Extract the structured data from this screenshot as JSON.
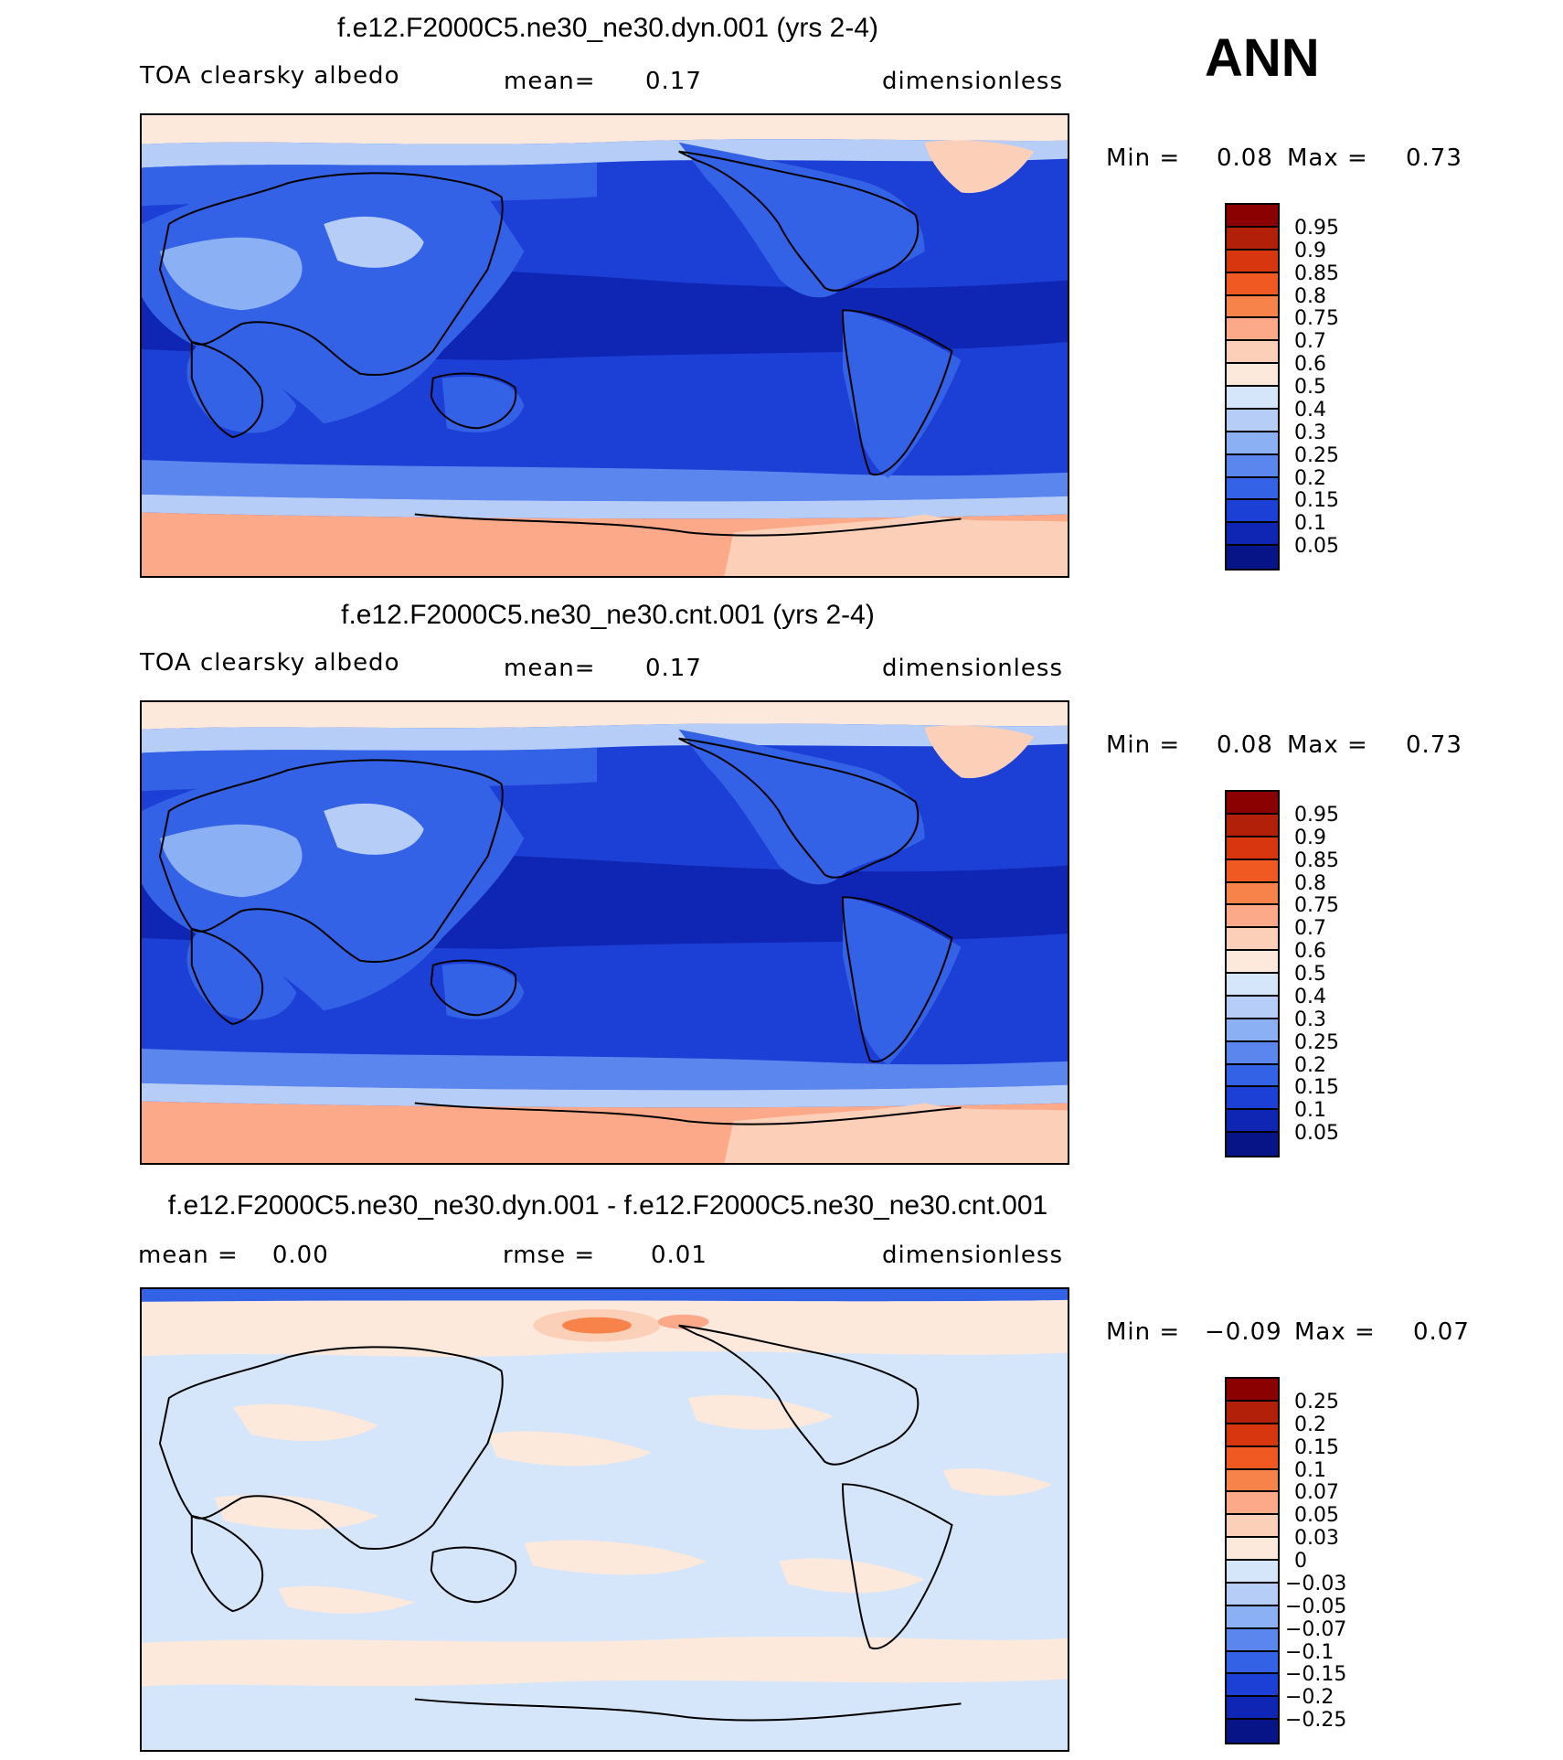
{
  "season": "ANN",
  "panels": [
    {
      "title": "f.e12.F2000C5.ne30_ne30.dyn.001 (yrs 2-4)",
      "subtitle_left": "TOA clearsky albedo",
      "stat_label": "mean=",
      "stat_value": "0.17",
      "stat2_label": "",
      "stat2_value": "",
      "units": "dimensionless",
      "min_label": "Min =",
      "min_value": "0.08",
      "max_label": "Max =",
      "max_value": "0.73",
      "colorbar_labels": [
        "0.95",
        "0.9",
        "0.85",
        "0.8",
        "0.75",
        "0.7",
        "0.6",
        "0.5",
        "0.4",
        "0.3",
        "0.25",
        "0.2",
        "0.15",
        "0.1",
        "0.05"
      ],
      "colorbar_colors": [
        "#8b0000",
        "#b3200a",
        "#d8360f",
        "#f05a22",
        "#f8834a",
        "#fca98a",
        "#fcd0b8",
        "#fde9dc",
        "#d6e6fa",
        "#b5cdf7",
        "#8cb0f4",
        "#5b86ee",
        "#3462e6",
        "#1c3fd6",
        "#0f25b3",
        "#061488"
      ]
    },
    {
      "title": "f.e12.F2000C5.ne30_ne30.cnt.001 (yrs 2-4)",
      "subtitle_left": "TOA clearsky albedo",
      "stat_label": "mean=",
      "stat_value": "0.17",
      "stat2_label": "",
      "stat2_value": "",
      "units": "dimensionless",
      "min_label": "Min =",
      "min_value": "0.08",
      "max_label": "Max =",
      "max_value": "0.73",
      "colorbar_labels": [
        "0.95",
        "0.9",
        "0.85",
        "0.8",
        "0.75",
        "0.7",
        "0.6",
        "0.5",
        "0.4",
        "0.3",
        "0.25",
        "0.2",
        "0.15",
        "0.1",
        "0.05"
      ],
      "colorbar_colors": [
        "#8b0000",
        "#b3200a",
        "#d8360f",
        "#f05a22",
        "#f8834a",
        "#fca98a",
        "#fcd0b8",
        "#fde9dc",
        "#d6e6fa",
        "#b5cdf7",
        "#8cb0f4",
        "#5b86ee",
        "#3462e6",
        "#1c3fd6",
        "#0f25b3",
        "#061488"
      ]
    },
    {
      "title": "f.e12.F2000C5.ne30_ne30.dyn.001 - f.e12.F2000C5.ne30_ne30.cnt.001",
      "subtitle_left": "mean =    0.00",
      "stat_label": "rmse =",
      "stat_value": "0.01",
      "units": "dimensionless",
      "min_label": "Min =",
      "min_value": "−0.09",
      "max_label": "Max =",
      "max_value": "0.07",
      "colorbar_labels": [
        "0.25",
        "0.2",
        "0.15",
        "0.1",
        "0.07",
        "0.05",
        "0.03",
        "0",
        "−0.03",
        "−0.05",
        "−0.07",
        "−0.1",
        "−0.15",
        "−0.2",
        "−0.25"
      ],
      "colorbar_colors": [
        "#8b0000",
        "#b3200a",
        "#d8360f",
        "#f05a22",
        "#f8834a",
        "#fca98a",
        "#fcd0b8",
        "#fde9dc",
        "#d6e6fa",
        "#b5cdf7",
        "#8cb0f4",
        "#5b86ee",
        "#3462e6",
        "#1c3fd6",
        "#0f25b3",
        "#061488"
      ]
    }
  ]
}
